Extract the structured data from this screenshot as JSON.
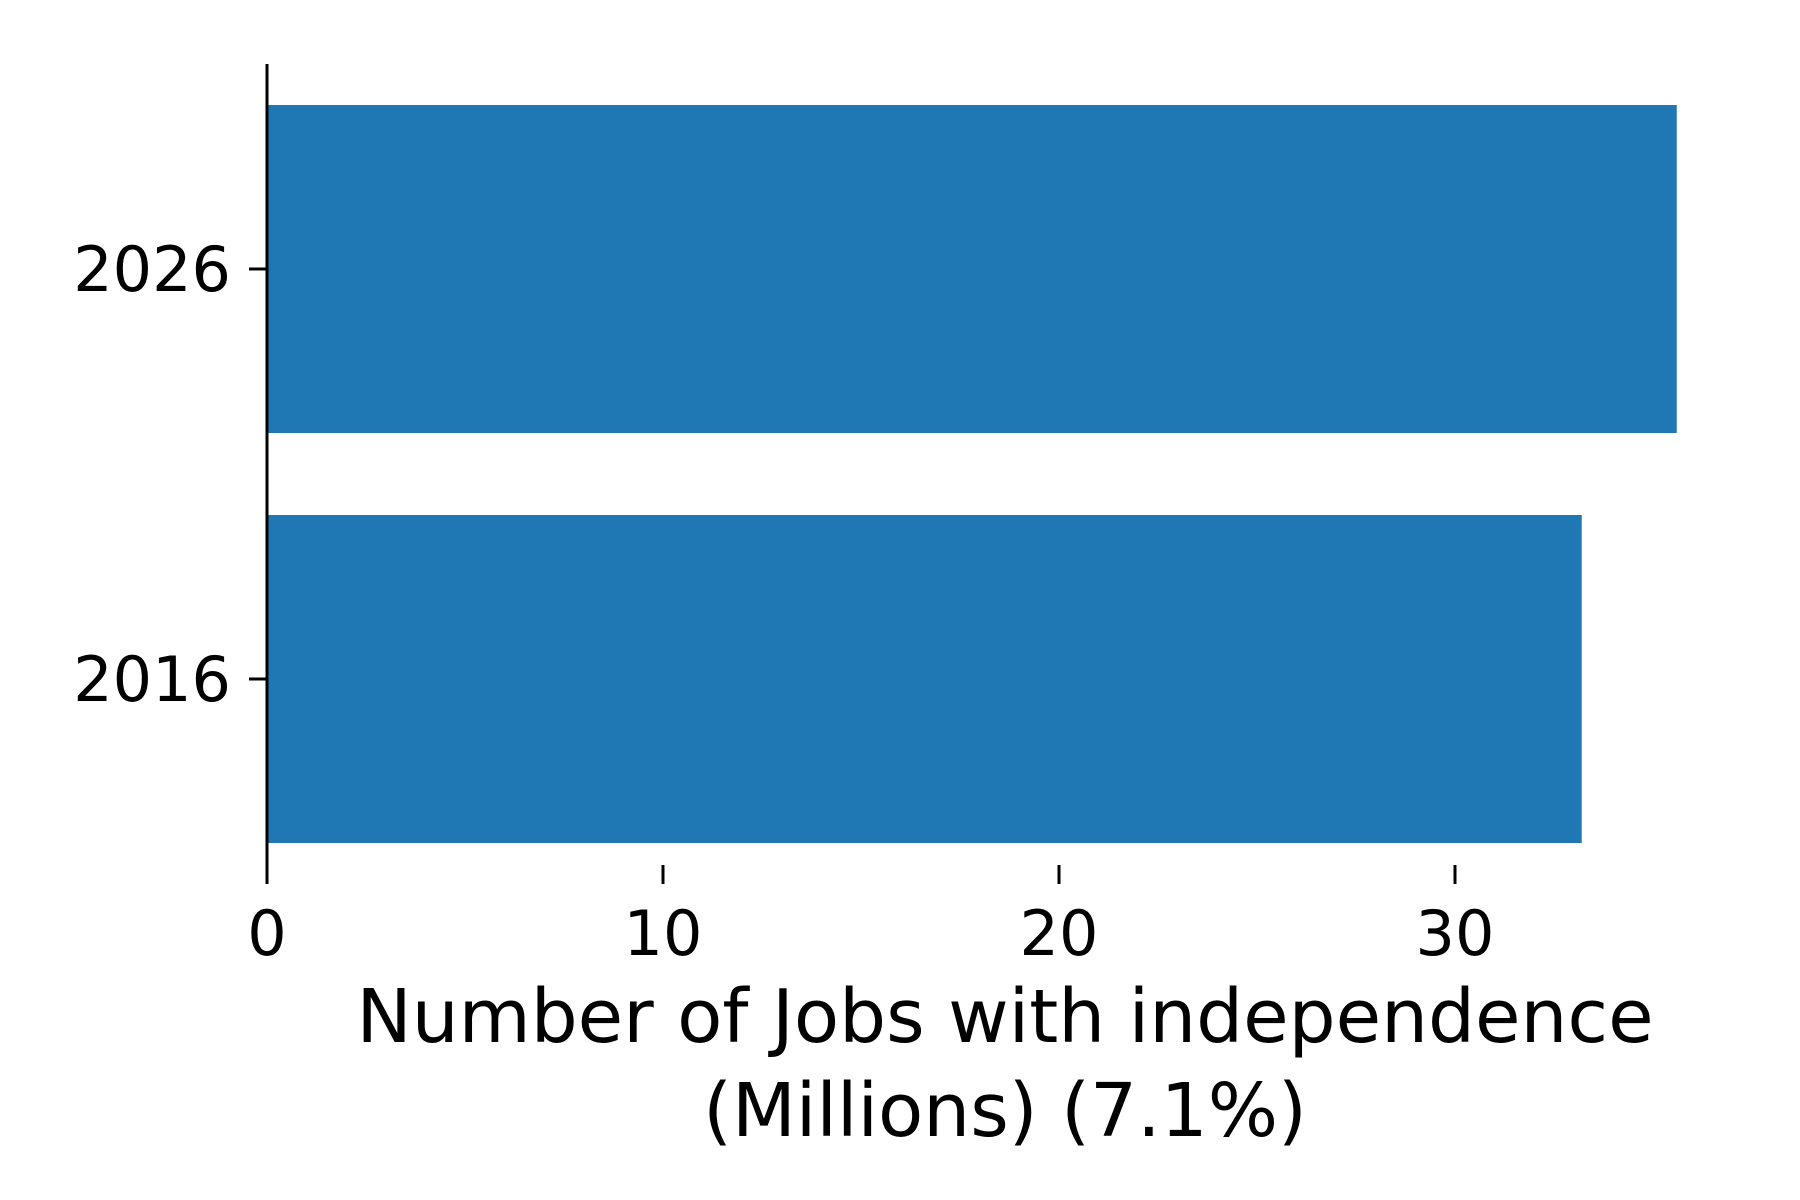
{
  "chart_data": {
    "type": "bar",
    "orientation": "horizontal",
    "categories": [
      "2016",
      "2026"
    ],
    "values": [
      33.2,
      35.6
    ],
    "title": "",
    "xlabel_lines": [
      "Number of Jobs with independence",
      "(Millions) (7.1%)"
    ],
    "ylabel": "",
    "xlim": [
      0,
      36
    ],
    "xticks": [
      0,
      10,
      20,
      30
    ],
    "grid": false,
    "legend": "none",
    "bar_color": "#1f77b4"
  }
}
